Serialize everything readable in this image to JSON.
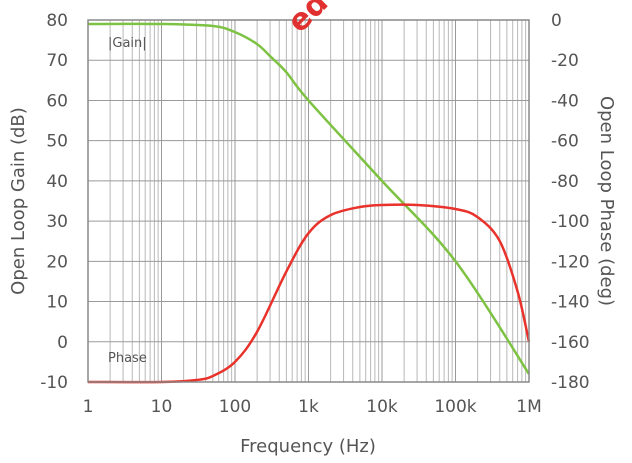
{
  "chart_data": {
    "type": "line",
    "xlabel": "Frequency (Hz)",
    "ylabel_left": "Open Loop Gain (dB)",
    "ylabel_right": "Open Loop Phase (deg)",
    "x_scale": "log",
    "xlim": [
      1,
      1000000
    ],
    "ylim_left": [
      -10,
      80
    ],
    "ylim_right": [
      -180,
      0
    ],
    "x_ticks": [
      1,
      10,
      100,
      1000,
      10000,
      100000,
      1000000
    ],
    "x_tick_labels": [
      "1",
      "10",
      "100",
      "1k",
      "10k",
      "100k",
      "1M"
    ],
    "y_left_ticks": [
      80,
      70,
      60,
      50,
      40,
      30,
      20,
      10,
      0,
      -10
    ],
    "y_right_ticks": [
      0,
      -20,
      -40,
      -60,
      -80,
      -100,
      -120,
      -140,
      -160,
      -180
    ],
    "grid": true,
    "annotations": [
      "|Gain|",
      "Phase"
    ],
    "watermark": "ed",
    "series": [
      {
        "name": "|Gain|",
        "axis": "left",
        "color": "#7dc242",
        "x": [
          1,
          10,
          50,
          100,
          200,
          300,
          500,
          1000,
          10000,
          100000,
          1000000
        ],
        "y": [
          79,
          79,
          78.5,
          77,
          74,
          71,
          67,
          60,
          40,
          20,
          -8
        ]
      },
      {
        "name": "Phase",
        "axis": "right",
        "color": "#e8322b",
        "x": [
          1,
          10,
          30,
          50,
          100,
          200,
          500,
          1000,
          2000,
          5000,
          10000,
          30000,
          100000,
          200000,
          400000,
          700000,
          1000000
        ],
        "y": [
          -180,
          -180,
          -179,
          -177,
          -170,
          -155,
          -125,
          -106,
          -97,
          -93,
          -92,
          -92,
          -94,
          -98,
          -110,
          -135,
          -160
        ]
      }
    ]
  }
}
